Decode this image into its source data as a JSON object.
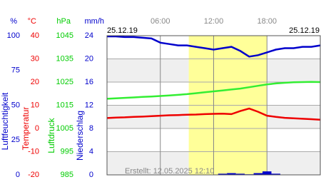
{
  "chart_data": {
    "type": "line",
    "date_start": "25.12.19",
    "date_end": "25.12.19",
    "footer": "Erstellt: 12.05.2025 12:10",
    "x": [
      0,
      1,
      2,
      3,
      4,
      5,
      6,
      7,
      8,
      9,
      10,
      11,
      12,
      13,
      14,
      15,
      16,
      17,
      18,
      19,
      20,
      21,
      22,
      23,
      24
    ],
    "xlim": [
      0,
      24
    ],
    "xticks": [
      {
        "value": 6,
        "label": "06:00"
      },
      {
        "value": 12,
        "label": "12:00"
      },
      {
        "value": 18,
        "label": "18:00"
      }
    ],
    "daylight": [
      9.2,
      18
    ],
    "grid": true,
    "y_axes": [
      {
        "label": "Luftfeuchtigkeit",
        "unit": "%",
        "color": "#0000cc",
        "ylim": [
          0,
          100
        ],
        "yticks": [
          0,
          25,
          50,
          75,
          100
        ]
      },
      {
        "label": "Temperatur",
        "unit": "°C",
        "color": "#ee0000",
        "ylim": [
          -20,
          40
        ],
        "yticks": [
          -20,
          -10,
          0,
          10,
          20,
          30,
          40
        ]
      },
      {
        "label": "Luftdruck",
        "unit": "hPa",
        "color": "#00cc00",
        "ylim": [
          985,
          1045
        ],
        "yticks": [
          985,
          995,
          1005,
          1015,
          1025,
          1035,
          1045
        ]
      },
      {
        "label": "Niederschlag",
        "unit": "mm/h",
        "color": "#0000cc",
        "ylim": [
          0,
          24
        ],
        "yticks": [
          0,
          4,
          8,
          12,
          16,
          20,
          24
        ]
      }
    ],
    "series": [
      {
        "axis": 0,
        "type": "line",
        "color": "#0000cc",
        "values": [
          99.5,
          99.5,
          99,
          99,
          98.5,
          98,
          95,
          94,
          93,
          93,
          92,
          91,
          90,
          91,
          92,
          89,
          85,
          86,
          88,
          90,
          91,
          91,
          92,
          92,
          93
        ]
      },
      {
        "axis": 2,
        "type": "line",
        "color": "#33ee33",
        "values": [
          1017.8,
          1018,
          1018.2,
          1018.4,
          1018.6,
          1018.8,
          1019,
          1019.2,
          1019.5,
          1019.8,
          1020.2,
          1020.6,
          1021,
          1021.4,
          1021.8,
          1022.2,
          1022.8,
          1023.4,
          1024,
          1024.4,
          1024.7,
          1024.9,
          1025,
          1025.1,
          1025
        ]
      },
      {
        "axis": 1,
        "type": "line",
        "color": "#ee0000",
        "values": [
          4.5,
          4.7,
          4.8,
          5,
          5.1,
          5.3,
          5.5,
          5.7,
          5.8,
          5.9,
          6,
          6.2,
          6.3,
          6.4,
          6.2,
          7.5,
          8.6,
          7.2,
          5.5,
          5,
          4.6,
          4.4,
          4.2,
          4,
          3.8
        ]
      },
      {
        "axis": 3,
        "type": "bar",
        "color": "#0000cc",
        "values": [
          0,
          0,
          0,
          0,
          0,
          0,
          0,
          0,
          0,
          0,
          0,
          0,
          0,
          0.2,
          0.3,
          0.2,
          0.1,
          0.3,
          0.6,
          0.2,
          0,
          0,
          0,
          0,
          0
        ]
      }
    ]
  }
}
